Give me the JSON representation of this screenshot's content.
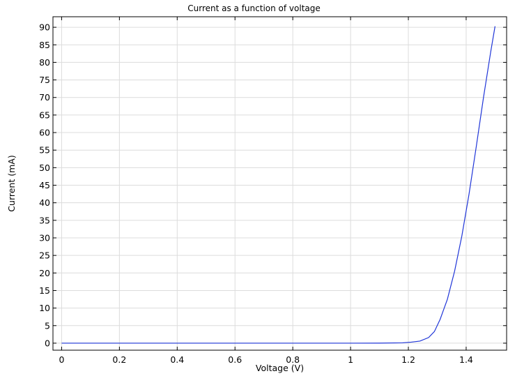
{
  "chart_data": {
    "type": "line",
    "title": "Current as a function of voltage",
    "xlabel": "Voltage (V)",
    "ylabel": "Current (mA)",
    "xlim": [
      -0.03,
      1.54
    ],
    "ylim": [
      -2,
      93
    ],
    "xticks": [
      0,
      0.2,
      0.4,
      0.6,
      0.8,
      1,
      1.2,
      1.4
    ],
    "xtick_labels": [
      "0",
      "0.2",
      "0.4",
      "0.6",
      "0.8",
      "1",
      "1.2",
      "1.4"
    ],
    "yticks": [
      0,
      5,
      10,
      15,
      20,
      25,
      30,
      35,
      40,
      45,
      50,
      55,
      60,
      65,
      70,
      75,
      80,
      85,
      90
    ],
    "ytick_labels": [
      "0",
      "5",
      "10",
      "15",
      "20",
      "25",
      "30",
      "35",
      "40",
      "45",
      "50",
      "55",
      "60",
      "65",
      "70",
      "75",
      "80",
      "85",
      "90"
    ],
    "grid": true,
    "series": [
      {
        "color": "#1f35d8",
        "x": [
          0,
          0.2,
          0.4,
          0.6,
          0.8,
          1.0,
          1.1,
          1.18,
          1.21,
          1.24,
          1.27,
          1.29,
          1.31,
          1.335,
          1.36,
          1.385,
          1.41,
          1.435,
          1.46,
          1.485,
          1.5
        ],
        "y": [
          0,
          0,
          0,
          0,
          0,
          0,
          0.02,
          0.1,
          0.3,
          0.6,
          1.6,
          3.3,
          6.8,
          12.5,
          20.5,
          30.5,
          42.5,
          56,
          70,
          83,
          90.3
        ]
      }
    ]
  }
}
